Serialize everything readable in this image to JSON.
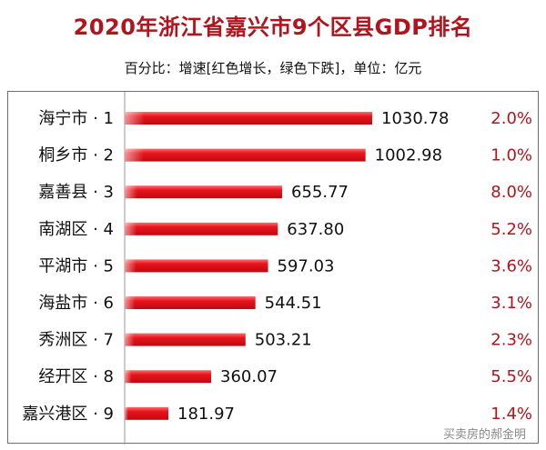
{
  "chart_data": {
    "type": "bar",
    "orientation": "horizontal",
    "title": "2020年浙江省嘉兴市9个区县GDP排名",
    "subtitle": "百分比：增速[红色增长，绿色下跌]，单位：亿元",
    "categories": [
      "海宁市 · 1",
      "桐乡市 · 2",
      "嘉善县 · 3",
      "南湖区 · 4",
      "平湖市 · 5",
      "海盐市 · 6",
      "秀洲区 · 7",
      "经开区 · 8",
      "嘉兴港区 · 9"
    ],
    "values": [
      1030.78,
      1002.98,
      655.77,
      637.8,
      597.03,
      544.51,
      503.21,
      360.07,
      181.97
    ],
    "value_labels": [
      "1030.78",
      "1002.98",
      "655.77",
      "637.80",
      "597.03",
      "544.51",
      "503.21",
      "360.07",
      "181.97"
    ],
    "growth_labels": [
      "2.0%",
      "1.0%",
      "8.0%",
      "5.2%",
      "3.6%",
      "3.1%",
      "2.3%",
      "5.5%",
      "1.4%"
    ],
    "xlim": [
      0,
      1030.78
    ],
    "grid": false,
    "colors": {
      "bar": "#e8141c",
      "title": "#b3141c",
      "growth_up": "#b3141c"
    }
  },
  "watermark": "买卖房的郝金明"
}
